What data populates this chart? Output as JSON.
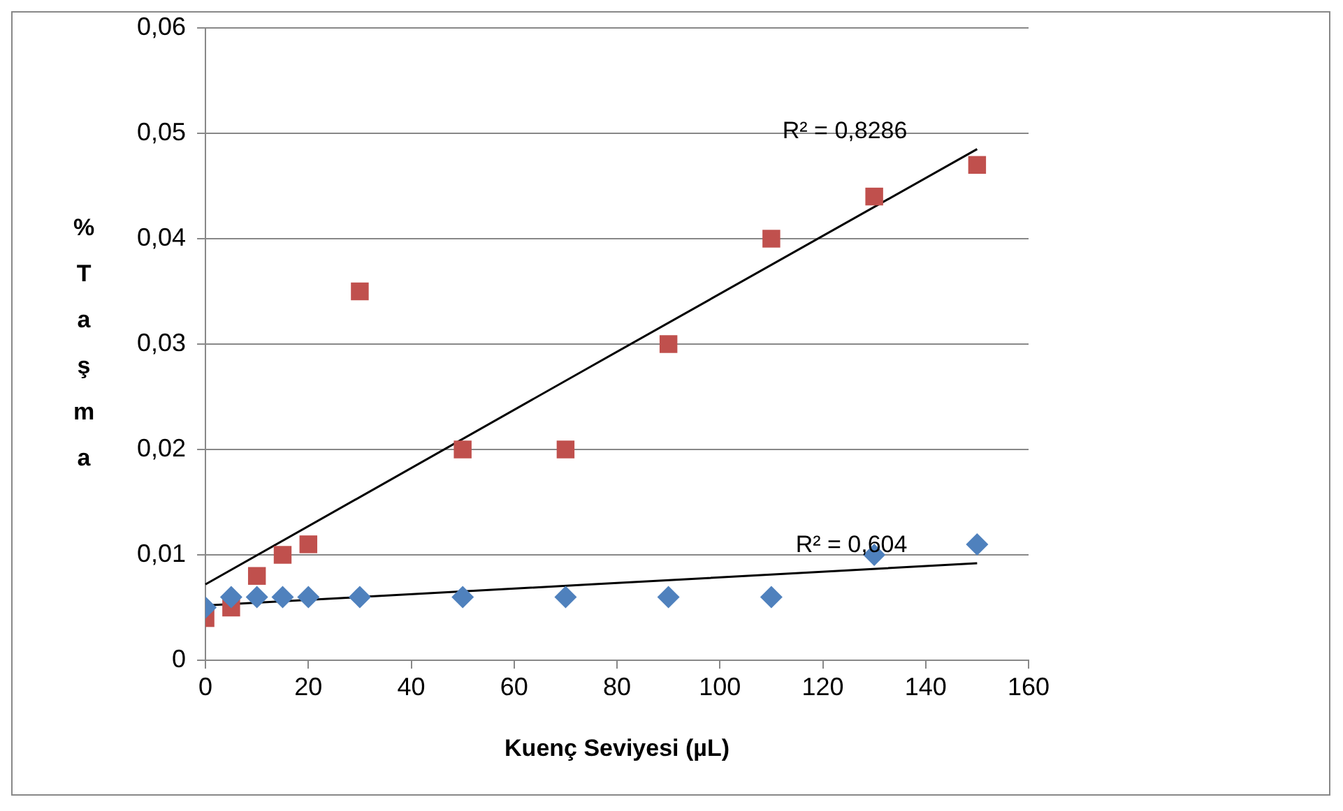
{
  "chart_data": {
    "type": "scatter",
    "xlabel": "Kuenç Seviyesi (µL)",
    "ylabel": "% Taşma",
    "x": [
      0,
      5,
      10,
      15,
      20,
      30,
      50,
      70,
      90,
      110,
      130,
      150
    ],
    "series": [
      {
        "color": "#4f81bd",
        "marker": "diamond",
        "values": [
          0.005,
          0.006,
          0.006,
          0.006,
          0.006,
          0.006,
          0.006,
          0.006,
          0.006,
          0.006,
          0.01,
          0.011
        ]
      },
      {
        "color": "#c0504d",
        "marker": "square",
        "values": [
          0.004,
          0.005,
          0.008,
          0.01,
          0.011,
          0.035,
          0.02,
          0.02,
          0.03,
          0.04,
          0.044,
          0.047
        ]
      },
      {
        "type": "line",
        "color": "#000000",
        "marker": "none",
        "x": [
          0,
          75,
          150
        ],
        "values": [
          0.0072,
          0.0279,
          0.0485
        ]
      },
      {
        "type": "line",
        "color": "#000000",
        "marker": "none",
        "x": [
          0,
          75,
          150
        ],
        "values": [
          0.0052,
          0.0072,
          0.0092
        ]
      }
    ],
    "xlim": [
      0,
      160
    ],
    "xticks": [
      0,
      20,
      40,
      60,
      80,
      100,
      120,
      140,
      160
    ],
    "ylim": [
      0,
      0.06
    ],
    "yticks": [
      0,
      {
        "value": 0.01,
        "label": "0,01"
      },
      {
        "value": 0.02,
        "label": "0,02"
      },
      {
        "value": 0.03,
        "label": "0,03"
      },
      {
        "value": 0.04,
        "label": "0,04"
      },
      {
        "value": 0.05,
        "label": "0,05"
      },
      {
        "value": 0.06,
        "label": "0,06"
      }
    ],
    "grid": "y",
    "legend": false,
    "annotations": [
      "R² = 0,8286",
      "R² = 0,604"
    ]
  }
}
